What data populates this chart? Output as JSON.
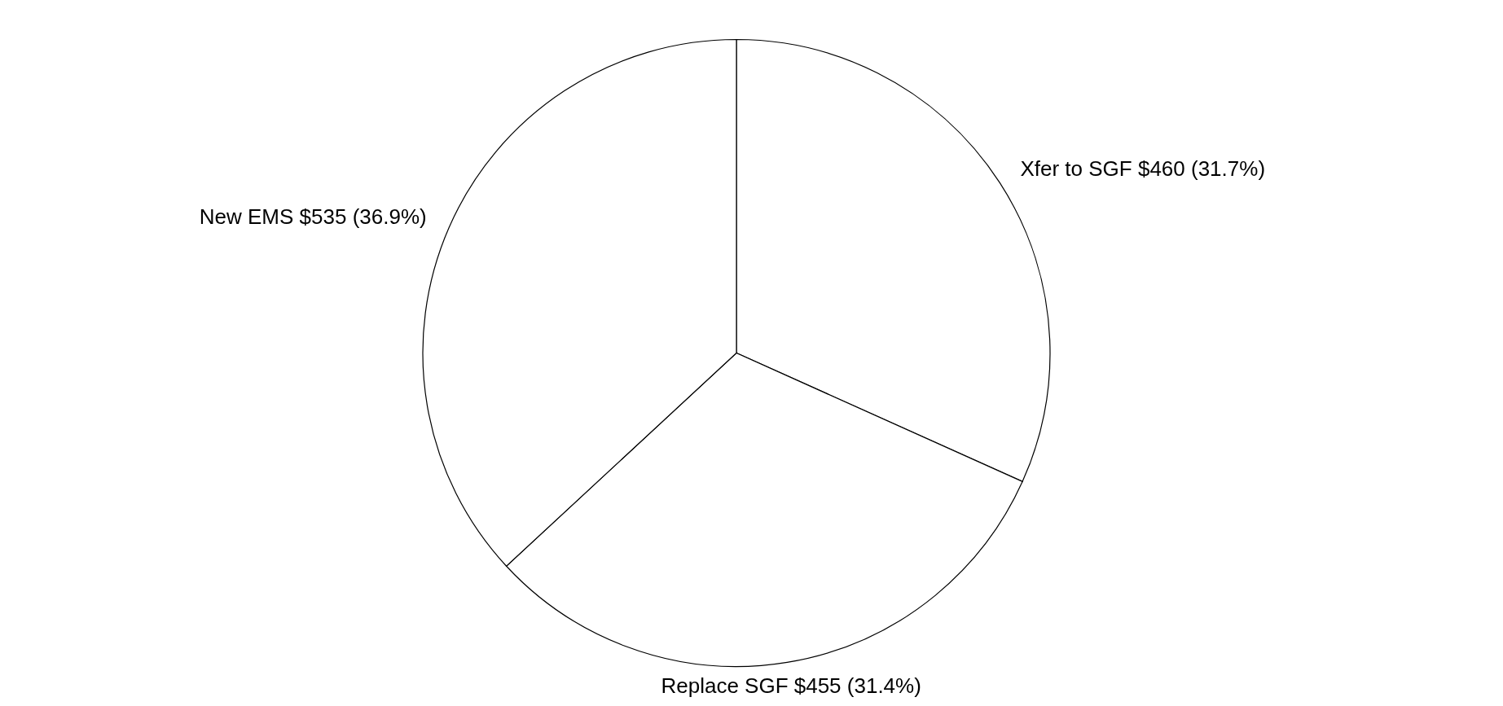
{
  "chart_data": {
    "type": "pie",
    "categories": [
      "Xfer to SGF",
      "Replace SGF",
      "New EMS"
    ],
    "values": [
      460,
      455,
      535
    ],
    "value_labels": [
      "$460 (31.7%)",
      "$455 (31.4%)",
      "$535 (36.9%)"
    ],
    "colors": [
      "#ffffff",
      "#ffffff",
      "#ffffff"
    ]
  }
}
